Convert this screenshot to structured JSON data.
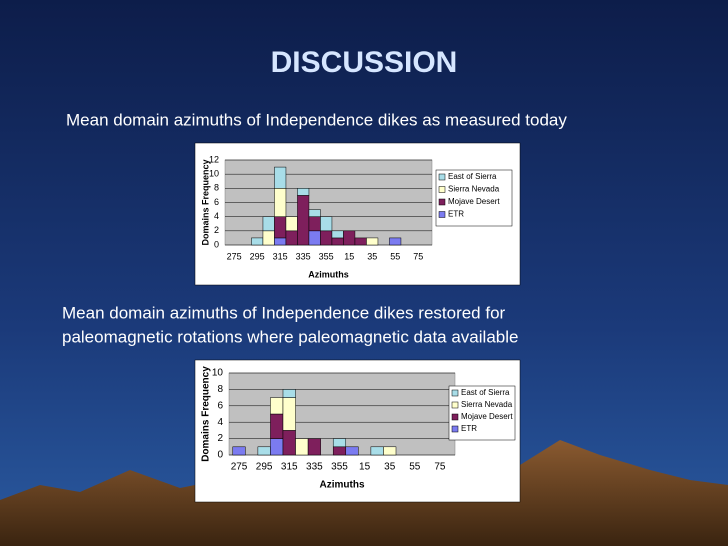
{
  "slide": {
    "title": "DISCUSSION"
  },
  "chart_data": [
    {
      "type": "bar",
      "stacked": true,
      "caption_lines": [
        "Mean domain azimuths of Independence dikes as measured today"
      ],
      "xlabel": "Azimuths",
      "ylabel": "Domains Frequency",
      "categories": [
        "275",
        null,
        "295",
        null,
        "315",
        null,
        "335",
        null,
        "355",
        null,
        "15",
        null,
        "35",
        null,
        "55",
        null,
        "75"
      ],
      "series": [
        {
          "name": "East of Sierra",
          "color": "#a8dde8",
          "values": [
            0,
            0,
            1,
            2,
            3,
            0,
            1,
            1,
            2,
            1,
            0,
            0,
            0,
            0,
            0,
            0,
            0
          ]
        },
        {
          "name": "Sierra Nevada",
          "color": "#ffffcc",
          "values": [
            0,
            0,
            0,
            2,
            4,
            2,
            0,
            0,
            0,
            0,
            0,
            0,
            1,
            0,
            0,
            0,
            0
          ]
        },
        {
          "name": "Mojave Desert",
          "color": "#7e1f5c",
          "values": [
            0,
            0,
            0,
            0,
            3,
            2,
            7,
            2,
            2,
            1,
            2,
            1,
            0,
            0,
            0,
            0,
            0
          ]
        },
        {
          "name": "ETR",
          "color": "#7b7bf0",
          "values": [
            0,
            0,
            0,
            0,
            1,
            0,
            0,
            2,
            0,
            0,
            0,
            0,
            0,
            0,
            1,
            0,
            0
          ]
        }
      ],
      "ylim": [
        0,
        12
      ],
      "yticks": [
        0,
        2,
        4,
        6,
        8,
        10,
        12
      ],
      "grid": true,
      "legend": "right"
    },
    {
      "type": "bar",
      "stacked": true,
      "caption_lines": [
        "Mean domain azimuths of Independence dikes restored for",
        "paleomagnetic rotations where paleomagnetic data available"
      ],
      "xlabel": "Azimuths",
      "ylabel": "Domains Frequency",
      "categories": [
        "275",
        null,
        "295",
        null,
        "315",
        null,
        "335",
        null,
        "355",
        null,
        "15",
        null,
        "35",
        null,
        "55",
        null,
        "75"
      ],
      "series": [
        {
          "name": "East of Sierra",
          "color": "#a8dde8",
          "values": [
            0,
            0,
            1,
            0,
            1,
            0,
            0,
            0,
            1,
            0,
            0,
            1,
            0,
            0,
            0,
            0,
            0
          ]
        },
        {
          "name": "Sierra Nevada",
          "color": "#ffffcc",
          "values": [
            0,
            0,
            0,
            2,
            4,
            2,
            0,
            0,
            0,
            0,
            0,
            0,
            1,
            0,
            0,
            0,
            0
          ]
        },
        {
          "name": "Mojave Desert",
          "color": "#7e1f5c",
          "values": [
            0,
            0,
            0,
            3,
            3,
            0,
            2,
            0,
            1,
            0,
            0,
            0,
            0,
            0,
            0,
            0,
            0
          ]
        },
        {
          "name": "ETR",
          "color": "#7b7bf0",
          "values": [
            1,
            0,
            0,
            2,
            0,
            0,
            0,
            0,
            0,
            1,
            0,
            0,
            0,
            0,
            0,
            0,
            0
          ]
        }
      ],
      "ylim": [
        0,
        10
      ],
      "yticks": [
        0,
        2,
        4,
        6,
        8,
        10
      ],
      "grid": true,
      "legend": "right"
    }
  ]
}
